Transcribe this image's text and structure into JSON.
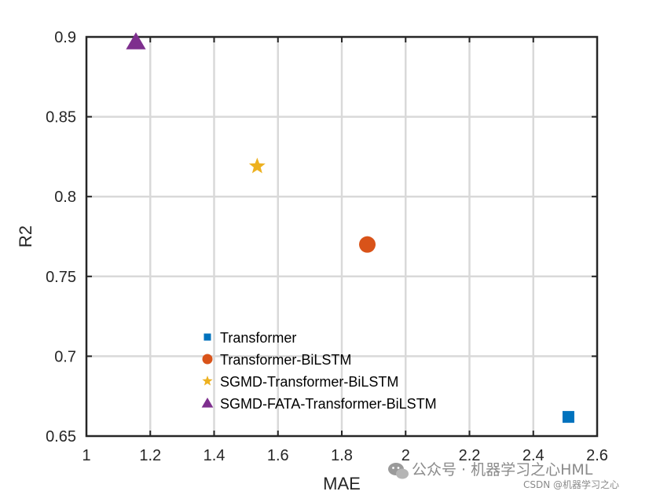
{
  "chart_data": {
    "type": "scatter",
    "xlabel": "MAE",
    "ylabel": "R2",
    "xlim": [
      1,
      2.6
    ],
    "ylim": [
      0.65,
      0.9
    ],
    "xticks": [
      "1",
      "1.2",
      "1.4",
      "1.6",
      "1.8",
      "2",
      "2.2",
      "2.4",
      "2.6"
    ],
    "yticks": [
      "0.65",
      "0.7",
      "0.75",
      "0.8",
      "0.85",
      "0.9"
    ],
    "grid": true,
    "legend_position": "lower-left-center",
    "series": [
      {
        "name": "Transformer",
        "marker": "square",
        "color": "#0072BD",
        "x": 2.51,
        "y": 0.662
      },
      {
        "name": "Transformer-BiLSTM",
        "marker": "circle",
        "color": "#D95319",
        "x": 1.88,
        "y": 0.77
      },
      {
        "name": "SGMD-Transformer-BiLSTM",
        "marker": "star",
        "color": "#EDB120",
        "x": 1.535,
        "y": 0.819
      },
      {
        "name": "SGMD-FATA-Transformer-BiLSTM",
        "marker": "triangle",
        "color": "#7E2F8E",
        "x": 1.155,
        "y": 0.897
      }
    ]
  },
  "watermark": {
    "wechat": "公众号 · 机器学习之心HML",
    "csdn": "CSDN @机器学习之心"
  }
}
